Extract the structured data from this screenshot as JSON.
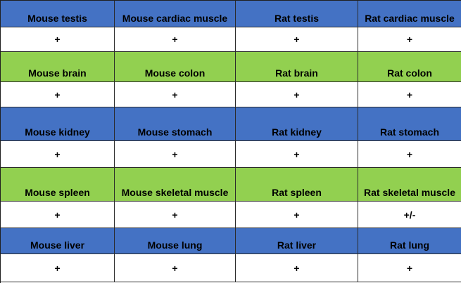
{
  "colors": {
    "blue_band": "#4472c4",
    "green_band": "#92d050",
    "value_row": "#ffffff"
  },
  "rows": [
    {
      "band": "blue",
      "tissues": [
        "Mouse testis",
        "Mouse cardiac muscle",
        "Rat testis",
        "Rat cardiac muscle"
      ],
      "values": [
        "+",
        "+",
        "+",
        "+"
      ]
    },
    {
      "band": "green",
      "tissues": [
        "Mouse brain",
        "Mouse colon",
        "Rat brain",
        "Rat colon"
      ],
      "values": [
        "+",
        "+",
        "+",
        "+"
      ]
    },
    {
      "band": "blue",
      "tissues": [
        "Mouse kidney",
        "Mouse stomach",
        "Rat kidney",
        "Rat stomach"
      ],
      "values": [
        "+",
        "+",
        "+",
        "+"
      ]
    },
    {
      "band": "green",
      "tissues": [
        "Mouse spleen",
        "Mouse skeletal muscle",
        "Rat spleen",
        "Rat skeletal muscle"
      ],
      "values": [
        "+",
        "+",
        "+",
        "+/-"
      ]
    },
    {
      "band": "blue",
      "tissues": [
        "Mouse liver",
        "Mouse lung",
        "Rat liver",
        "Rat lung"
      ],
      "values": [
        "+",
        "+",
        "+",
        "+"
      ]
    }
  ]
}
